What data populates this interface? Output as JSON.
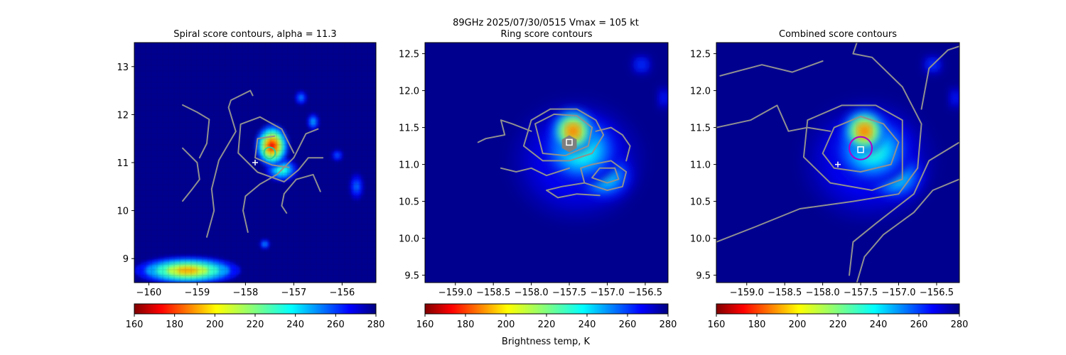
{
  "figure": {
    "suptitle_line1": "89GHz  2025/07/30/0515    Vmax = 105 kt",
    "colorbar_label": "Brightness temp, K"
  },
  "colormap": {
    "name": "jet_r",
    "vmin": 160,
    "vmax": 280,
    "ticks": [
      160,
      180,
      200,
      220,
      240,
      260,
      280
    ],
    "background_color": "#00008f",
    "contour_color": "#909090"
  },
  "chart_data": [
    {
      "type": "heatmap",
      "title": "Spiral score contours, alpha = 11.3",
      "xlim": [
        -160.3,
        -155.3
      ],
      "ylim": [
        8.5,
        13.5
      ],
      "xticks": [
        -160,
        -159,
        -158,
        -157,
        -156
      ],
      "xtick_labels": [
        "−160",
        "−159",
        "−158",
        "−157",
        "−156"
      ],
      "yticks": [
        9,
        10,
        11,
        12,
        13
      ],
      "ytick_labels": [
        "9",
        "10",
        "11",
        "12",
        "13"
      ],
      "grid": false,
      "pixelated": true,
      "intensity_blobs": [
        {
          "x": -157.45,
          "y": 11.35,
          "rx": 0.35,
          "ry": 0.45,
          "tb": 175
        },
        {
          "x": -157.25,
          "y": 10.85,
          "rx": 0.35,
          "ry": 0.25,
          "tb": 225
        },
        {
          "x": -156.6,
          "y": 11.85,
          "rx": 0.12,
          "ry": 0.18,
          "tb": 240
        },
        {
          "x": -156.85,
          "y": 12.35,
          "rx": 0.12,
          "ry": 0.15,
          "tb": 245
        },
        {
          "x": -156.1,
          "y": 11.15,
          "rx": 0.12,
          "ry": 0.12,
          "tb": 250
        },
        {
          "x": -155.7,
          "y": 10.5,
          "rx": 0.15,
          "ry": 0.3,
          "tb": 250
        },
        {
          "x": -157.6,
          "y": 9.3,
          "rx": 0.1,
          "ry": 0.1,
          "tb": 240
        },
        {
          "x": -159.2,
          "y": 8.75,
          "rx": 1.1,
          "ry": 0.3,
          "tb": 195
        }
      ],
      "contours": [
        [
          [
            -157.0,
            11.2
          ],
          [
            -157.25,
            11.7
          ],
          [
            -157.7,
            11.95
          ],
          [
            -158.1,
            11.8
          ],
          [
            -158.15,
            11.2
          ],
          [
            -157.75,
            10.8
          ],
          [
            -157.2,
            10.6
          ],
          [
            -156.9,
            10.85
          ],
          [
            -156.7,
            11.1
          ],
          [
            -156.4,
            11.1
          ]
        ],
        [
          [
            -157.4,
            11.55
          ],
          [
            -157.75,
            11.5
          ],
          [
            -157.8,
            11.1
          ],
          [
            -157.45,
            10.95
          ],
          [
            -157.1,
            10.9
          ]
        ],
        [
          [
            -156.5,
            11.7
          ],
          [
            -156.75,
            11.6
          ],
          [
            -157.0,
            11.1
          ],
          [
            -157.35,
            10.75
          ],
          [
            -157.7,
            10.55
          ],
          [
            -158.0,
            10.3
          ],
          [
            -158.05,
            10.0
          ],
          [
            -157.95,
            9.55
          ]
        ],
        [
          [
            -156.45,
            10.4
          ],
          [
            -156.6,
            10.75
          ],
          [
            -156.95,
            10.65
          ],
          [
            -157.2,
            10.35
          ],
          [
            -157.25,
            10.1
          ],
          [
            -157.15,
            9.95
          ]
        ],
        [
          [
            -157.85,
            12.4
          ],
          [
            -157.9,
            12.5
          ],
          [
            -158.3,
            12.3
          ],
          [
            -158.35,
            12.15
          ],
          [
            -158.2,
            11.65
          ],
          [
            -158.55,
            11.05
          ],
          [
            -158.7,
            10.45
          ],
          [
            -158.65,
            10.0
          ],
          [
            -158.8,
            9.45
          ]
        ],
        [
          [
            -159.3,
            12.2
          ],
          [
            -159.0,
            12.05
          ],
          [
            -158.75,
            11.9
          ],
          [
            -158.8,
            11.4
          ],
          [
            -158.95,
            11.1
          ]
        ],
        [
          [
            -159.3,
            11.3
          ],
          [
            -159.0,
            11.0
          ],
          [
            -158.95,
            10.65
          ],
          [
            -159.1,
            10.45
          ],
          [
            -159.3,
            10.2
          ]
        ]
      ],
      "markers": [
        {
          "kind": "circle",
          "x": -157.5,
          "y": 11.2,
          "size": "small",
          "color": "#2ad29a"
        },
        {
          "kind": "plus",
          "x": -157.8,
          "y": 11.0,
          "color": "#ffffff"
        }
      ]
    },
    {
      "type": "heatmap",
      "title": "Ring score contours",
      "xlim": [
        -159.4,
        -156.2
      ],
      "ylim": [
        9.4,
        12.65
      ],
      "xticks": [
        -159.0,
        -158.5,
        -158.0,
        -157.5,
        -157.0,
        -156.5
      ],
      "xtick_labels": [
        "−159.0",
        "−158.5",
        "−158.0",
        "−157.5",
        "−157.0",
        "−156.5"
      ],
      "yticks": [
        9.5,
        10.0,
        10.5,
        11.0,
        11.5,
        12.0,
        12.5
      ],
      "ytick_labels": [
        "9.5",
        "10.0",
        "10.5",
        "11.0",
        "11.5",
        "12.0",
        "12.5"
      ],
      "grid": false,
      "pixelated": false,
      "intensity_blobs": [
        {
          "x": -157.45,
          "y": 11.45,
          "rx": 0.28,
          "ry": 0.3,
          "tb": 178
        },
        {
          "x": -157.35,
          "y": 11.2,
          "rx": 0.55,
          "ry": 0.5,
          "tb": 225
        },
        {
          "x": -157.05,
          "y": 10.85,
          "rx": 0.4,
          "ry": 0.35,
          "tb": 228
        },
        {
          "x": -157.4,
          "y": 11.05,
          "rx": 0.9,
          "ry": 0.85,
          "tb": 258
        },
        {
          "x": -156.55,
          "y": 12.35,
          "rx": 0.12,
          "ry": 0.12,
          "tb": 250
        },
        {
          "x": -156.25,
          "y": 11.9,
          "rx": 0.08,
          "ry": 0.15,
          "tb": 255
        }
      ],
      "contours": [
        [
          [
            -158.0,
            11.6
          ],
          [
            -157.75,
            11.75
          ],
          [
            -157.4,
            11.75
          ],
          [
            -157.15,
            11.6
          ],
          [
            -157.05,
            11.4
          ],
          [
            -157.2,
            11.15
          ],
          [
            -157.5,
            11.05
          ],
          [
            -157.85,
            11.05
          ],
          [
            -158.1,
            11.25
          ],
          [
            -158.0,
            11.6
          ]
        ],
        [
          [
            -157.95,
            11.55
          ],
          [
            -157.7,
            11.68
          ],
          [
            -157.4,
            11.66
          ],
          [
            -157.2,
            11.5
          ],
          [
            -157.25,
            11.25
          ],
          [
            -157.55,
            11.12
          ],
          [
            -157.85,
            11.15
          ],
          [
            -157.95,
            11.55
          ]
        ],
        [
          [
            -158.0,
            11.45
          ],
          [
            -158.25,
            11.55
          ],
          [
            -158.4,
            11.6
          ],
          [
            -158.35,
            11.4
          ],
          [
            -158.6,
            11.35
          ],
          [
            -158.7,
            11.3
          ]
        ],
        [
          [
            -157.15,
            11.45
          ],
          [
            -156.95,
            11.5
          ],
          [
            -156.8,
            11.4
          ],
          [
            -156.7,
            11.25
          ],
          [
            -156.75,
            11.05
          ]
        ],
        [
          [
            -157.2,
            11.0
          ],
          [
            -156.95,
            11.05
          ],
          [
            -156.75,
            10.9
          ],
          [
            -156.8,
            10.7
          ],
          [
            -157.0,
            10.65
          ],
          [
            -157.3,
            10.75
          ],
          [
            -157.35,
            10.95
          ],
          [
            -157.2,
            11.0
          ]
        ],
        [
          [
            -157.1,
            10.95
          ],
          [
            -156.9,
            10.95
          ],
          [
            -156.85,
            10.8
          ],
          [
            -157.0,
            10.75
          ],
          [
            -157.2,
            10.82
          ],
          [
            -157.1,
            10.95
          ]
        ],
        [
          [
            -157.5,
            10.95
          ],
          [
            -157.8,
            10.85
          ],
          [
            -158.0,
            10.95
          ],
          [
            -158.2,
            10.9
          ],
          [
            -158.4,
            10.95
          ]
        ],
        [
          [
            -157.3,
            10.75
          ],
          [
            -157.6,
            10.7
          ],
          [
            -157.8,
            10.65
          ],
          [
            -157.65,
            10.55
          ],
          [
            -157.4,
            10.6
          ],
          [
            -157.1,
            10.58
          ]
        ]
      ],
      "markers": [
        {
          "kind": "hexagon",
          "x": -157.5,
          "y": 11.28,
          "color": "#7f7f7f"
        },
        {
          "kind": "square",
          "x": -157.5,
          "y": 11.3,
          "color": "#ffffff"
        }
      ]
    },
    {
      "type": "heatmap",
      "title": "Combined score contours",
      "xlim": [
        -159.4,
        -156.2
      ],
      "ylim": [
        9.4,
        12.65
      ],
      "xticks": [
        -159.0,
        -158.5,
        -158.0,
        -157.5,
        -157.0,
        -156.5
      ],
      "xtick_labels": [
        "−159.0",
        "−158.5",
        "−158.0",
        "−157.5",
        "−157.0",
        "−156.5"
      ],
      "yticks": [
        9.5,
        10.0,
        10.5,
        11.0,
        11.5,
        12.0,
        12.5
      ],
      "ytick_labels": [
        "9.5",
        "10.0",
        "10.5",
        "11.0",
        "11.5",
        "12.0",
        "12.5"
      ],
      "grid": false,
      "pixelated": false,
      "intensity_blobs": [
        {
          "x": -157.45,
          "y": 11.45,
          "rx": 0.28,
          "ry": 0.3,
          "tb": 178
        },
        {
          "x": -157.35,
          "y": 11.2,
          "rx": 0.55,
          "ry": 0.5,
          "tb": 225
        },
        {
          "x": -157.05,
          "y": 10.85,
          "rx": 0.4,
          "ry": 0.35,
          "tb": 228
        },
        {
          "x": -157.4,
          "y": 11.05,
          "rx": 0.9,
          "ry": 0.85,
          "tb": 258
        },
        {
          "x": -156.55,
          "y": 12.35,
          "rx": 0.12,
          "ry": 0.12,
          "tb": 250
        },
        {
          "x": -156.25,
          "y": 11.9,
          "rx": 0.08,
          "ry": 0.15,
          "tb": 255
        }
      ],
      "contours": [
        [
          [
            -157.1,
            11.0
          ],
          [
            -157.0,
            11.3
          ],
          [
            -157.2,
            11.55
          ],
          [
            -157.5,
            11.65
          ],
          [
            -157.85,
            11.5
          ],
          [
            -158.0,
            11.15
          ],
          [
            -157.85,
            10.95
          ],
          [
            -157.5,
            10.9
          ],
          [
            -157.1,
            11.0
          ]
        ],
        [
          [
            -156.95,
            11.15
          ],
          [
            -156.95,
            11.6
          ],
          [
            -157.3,
            11.8
          ],
          [
            -157.75,
            11.8
          ],
          [
            -158.2,
            11.6
          ],
          [
            -158.25,
            11.1
          ],
          [
            -157.9,
            10.75
          ],
          [
            -157.35,
            10.65
          ],
          [
            -156.95,
            10.8
          ],
          [
            -156.95,
            11.15
          ]
        ],
        [
          [
            -156.75,
            10.95
          ],
          [
            -156.7,
            11.55
          ],
          [
            -156.95,
            12.05
          ],
          [
            -157.35,
            12.45
          ],
          [
            -157.6,
            12.5
          ],
          [
            -157.55,
            12.65
          ]
        ],
        [
          [
            -157.9,
            11.45
          ],
          [
            -158.2,
            11.5
          ],
          [
            -158.45,
            11.45
          ],
          [
            -158.6,
            11.8
          ],
          [
            -158.95,
            11.6
          ],
          [
            -159.4,
            11.5
          ]
        ],
        [
          [
            -156.75,
            10.95
          ],
          [
            -157.0,
            10.6
          ],
          [
            -157.6,
            10.5
          ],
          [
            -158.3,
            10.4
          ],
          [
            -158.9,
            10.15
          ],
          [
            -159.4,
            9.95
          ]
        ],
        [
          [
            -156.2,
            11.3
          ],
          [
            -156.6,
            11.05
          ],
          [
            -156.8,
            10.6
          ],
          [
            -157.3,
            10.2
          ],
          [
            -157.6,
            9.95
          ],
          [
            -157.65,
            9.5
          ]
        ],
        [
          [
            -156.2,
            10.8
          ],
          [
            -156.55,
            10.65
          ],
          [
            -156.8,
            10.35
          ],
          [
            -157.2,
            10.05
          ],
          [
            -157.45,
            9.75
          ],
          [
            -157.55,
            9.4
          ]
        ],
        [
          [
            -156.7,
            11.75
          ],
          [
            -156.6,
            12.3
          ],
          [
            -156.35,
            12.55
          ],
          [
            -156.2,
            12.6
          ]
        ],
        [
          [
            -159.35,
            12.2
          ],
          [
            -158.8,
            12.35
          ],
          [
            -158.4,
            12.25
          ],
          [
            -158.0,
            12.4
          ]
        ]
      ],
      "markers": [
        {
          "kind": "circle",
          "x": -157.5,
          "y": 11.22,
          "size": "large",
          "color": "#b000c8"
        },
        {
          "kind": "square",
          "x": -157.5,
          "y": 11.2,
          "color": "#ffffff"
        },
        {
          "kind": "plus",
          "x": -157.8,
          "y": 11.0,
          "color": "#ffffff"
        }
      ]
    }
  ]
}
